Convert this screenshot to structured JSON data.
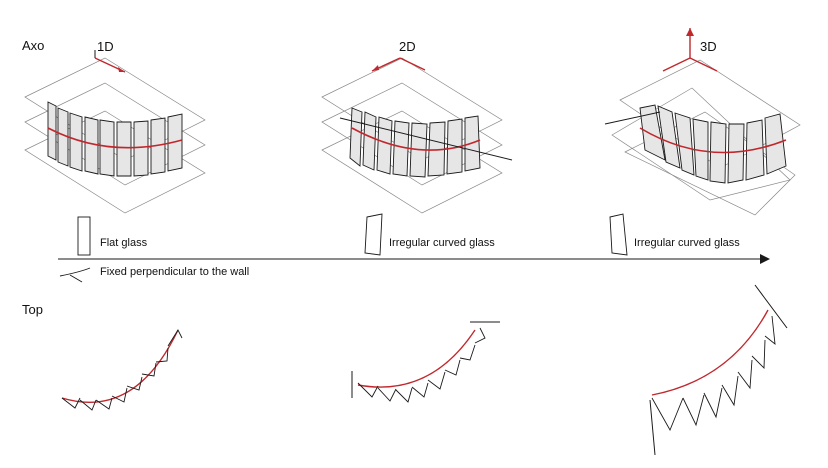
{
  "rows": {
    "axo": "Axo",
    "top": "Top"
  },
  "dimensions": [
    "1D",
    "2D",
    "3D"
  ],
  "legend": {
    "flat_glass": "Flat glass",
    "curved_glass_2d": "Irregular curved glass",
    "curved_glass_3d": "Irregular curved glass",
    "fixed": "Fixed perpendicular to the wall"
  },
  "colors": {
    "accent": "#c0282d",
    "line": "#1a1a1a",
    "plane": "#8a8a8a",
    "glass_fill": "#e6e6e6"
  }
}
